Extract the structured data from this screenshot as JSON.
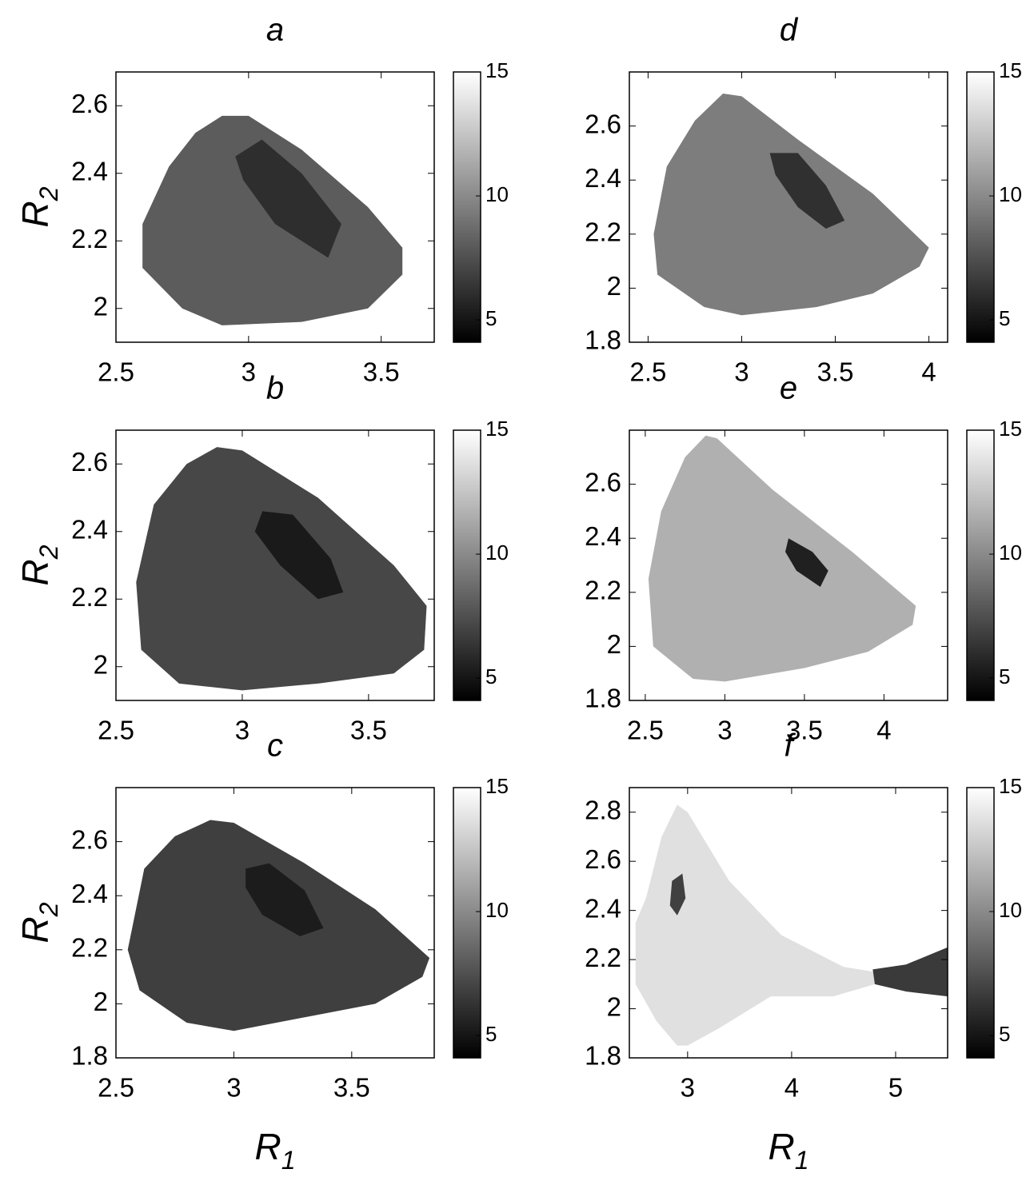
{
  "chart_data": [
    {
      "type": "heatmap",
      "title": "a",
      "xlim": [
        2.5,
        3.7
      ],
      "ylim": [
        1.9,
        2.7
      ],
      "xticks": [
        2.5,
        3,
        3.5
      ],
      "yticks": [
        2,
        2.2,
        2.4,
        2.6
      ],
      "ylabel": {
        "base": "R",
        "subscript": "2"
      },
      "colormap": "gray",
      "colorbar": {
        "clim": [
          4.1,
          15
        ],
        "ticks": [
          5,
          10,
          15
        ]
      },
      "regions": [
        {
          "x": [
            2.6,
            2.7,
            2.8,
            2.9,
            3.0,
            3.2,
            3.45,
            3.58,
            3.58,
            3.45,
            3.2,
            2.9,
            2.75,
            2.6
          ],
          "y": [
            2.25,
            2.42,
            2.52,
            2.57,
            2.57,
            2.47,
            2.3,
            2.18,
            2.1,
            2.0,
            1.96,
            1.95,
            2.0,
            2.12
          ],
          "color": "#5c5c5c"
        },
        {
          "x": [
            2.95,
            3.05,
            3.2,
            3.35,
            3.3,
            3.1,
            2.98
          ],
          "y": [
            2.45,
            2.5,
            2.4,
            2.25,
            2.15,
            2.25,
            2.38
          ],
          "color": "#2e2e2e"
        }
      ]
    },
    {
      "type": "heatmap",
      "title": "b",
      "xlim": [
        2.5,
        3.76
      ],
      "ylim": [
        1.9,
        2.7
      ],
      "xticks": [
        2.5,
        3,
        3.5
      ],
      "yticks": [
        2,
        2.2,
        2.4,
        2.6
      ],
      "ylabel": {
        "base": "R",
        "subscript": "2"
      },
      "colormap": "gray",
      "colorbar": {
        "clim": [
          4.1,
          15
        ],
        "ticks": [
          5,
          10,
          15
        ]
      },
      "regions": [
        {
          "x": [
            2.58,
            2.65,
            2.78,
            2.9,
            3.0,
            3.3,
            3.6,
            3.73,
            3.72,
            3.6,
            3.3,
            3.0,
            2.75,
            2.6
          ],
          "y": [
            2.25,
            2.48,
            2.6,
            2.65,
            2.64,
            2.5,
            2.3,
            2.18,
            2.05,
            1.98,
            1.95,
            1.93,
            1.95,
            2.05
          ],
          "color": "#474747"
        },
        {
          "x": [
            3.08,
            3.2,
            3.35,
            3.4,
            3.3,
            3.15,
            3.05
          ],
          "y": [
            2.46,
            2.45,
            2.32,
            2.22,
            2.2,
            2.3,
            2.4
          ],
          "color": "#1a1a1a"
        }
      ]
    },
    {
      "type": "heatmap",
      "title": "c",
      "xlim": [
        2.5,
        3.85
      ],
      "ylim": [
        1.8,
        2.8
      ],
      "xticks": [
        2.5,
        3,
        3.5
      ],
      "yticks": [
        1.8,
        2,
        2.2,
        2.4,
        2.6
      ],
      "ylabel": {
        "base": "R",
        "subscript": "2"
      },
      "xlabel": {
        "base": "R",
        "subscript": "1"
      },
      "colormap": "gray",
      "colorbar": {
        "clim": [
          4.1,
          15
        ],
        "ticks": [
          5,
          10,
          15
        ]
      },
      "regions": [
        {
          "x": [
            2.55,
            2.62,
            2.75,
            2.9,
            3.0,
            3.3,
            3.6,
            3.83,
            3.8,
            3.6,
            3.3,
            3.0,
            2.8,
            2.6
          ],
          "y": [
            2.2,
            2.5,
            2.62,
            2.68,
            2.67,
            2.52,
            2.35,
            2.17,
            2.1,
            2.0,
            1.95,
            1.9,
            1.93,
            2.05
          ],
          "color": "#3f3f3f"
        },
        {
          "x": [
            3.05,
            3.15,
            3.3,
            3.38,
            3.28,
            3.12,
            3.05
          ],
          "y": [
            2.5,
            2.52,
            2.42,
            2.28,
            2.25,
            2.33,
            2.43
          ],
          "color": "#1c1c1c"
        }
      ]
    },
    {
      "type": "heatmap",
      "title": "d",
      "xlim": [
        2.4,
        4.1
      ],
      "ylim": [
        1.8,
        2.8
      ],
      "xticks": [
        2.5,
        3,
        3.5,
        4
      ],
      "yticks": [
        1.8,
        2,
        2.2,
        2.4,
        2.6
      ],
      "colormap": "gray",
      "colorbar": {
        "clim": [
          4.1,
          15
        ],
        "ticks": [
          5,
          10,
          15
        ]
      },
      "regions": [
        {
          "x": [
            2.53,
            2.6,
            2.75,
            2.9,
            3.0,
            3.3,
            3.7,
            4.0,
            3.95,
            3.7,
            3.4,
            3.0,
            2.8,
            2.55
          ],
          "y": [
            2.2,
            2.45,
            2.62,
            2.72,
            2.71,
            2.55,
            2.35,
            2.15,
            2.08,
            1.98,
            1.93,
            1.9,
            1.93,
            2.05
          ],
          "color": "#7d7d7d"
        },
        {
          "x": [
            3.15,
            3.3,
            3.45,
            3.55,
            3.45,
            3.3,
            3.18
          ],
          "y": [
            2.5,
            2.5,
            2.38,
            2.25,
            2.22,
            2.3,
            2.42
          ],
          "color": "#303030"
        }
      ]
    },
    {
      "type": "heatmap",
      "title": "e",
      "xlim": [
        2.4,
        4.4
      ],
      "ylim": [
        1.8,
        2.8
      ],
      "xticks": [
        2.5,
        3,
        3.5,
        4
      ],
      "yticks": [
        1.8,
        2,
        2.2,
        2.4,
        2.6
      ],
      "colormap": "gray",
      "colorbar": {
        "clim": [
          4.1,
          15
        ],
        "ticks": [
          5,
          10,
          15
        ]
      },
      "regions": [
        {
          "x": [
            2.52,
            2.6,
            2.75,
            2.88,
            2.95,
            3.3,
            3.8,
            4.2,
            4.18,
            3.9,
            3.5,
            3.0,
            2.8,
            2.55
          ],
          "y": [
            2.25,
            2.5,
            2.7,
            2.78,
            2.77,
            2.58,
            2.35,
            2.15,
            2.08,
            1.98,
            1.92,
            1.87,
            1.88,
            2.0
          ],
          "color": "#b0b0b0"
        },
        {
          "x": [
            3.4,
            3.55,
            3.65,
            3.6,
            3.45,
            3.38
          ],
          "y": [
            2.4,
            2.35,
            2.28,
            2.22,
            2.28,
            2.35
          ],
          "color": "#202020"
        }
      ]
    },
    {
      "type": "heatmap",
      "title": "f",
      "xlim": [
        2.44,
        5.5
      ],
      "ylim": [
        1.8,
        2.9
      ],
      "xticks": [
        3,
        4,
        5
      ],
      "yticks": [
        1.8,
        2,
        2.2,
        2.4,
        2.6,
        2.8
      ],
      "xlabel": {
        "base": "R",
        "subscript": "1"
      },
      "colormap": "gray",
      "colorbar": {
        "clim": [
          4.1,
          15
        ],
        "ticks": [
          5,
          10,
          15
        ]
      },
      "regions": [
        {
          "x": [
            2.5,
            2.6,
            2.75,
            2.9,
            3.0,
            3.4,
            3.9,
            4.5,
            4.8,
            4.8,
            4.4,
            3.8,
            3.3,
            3.0,
            2.9,
            2.7,
            2.5
          ],
          "y": [
            2.35,
            2.45,
            2.7,
            2.83,
            2.8,
            2.52,
            2.3,
            2.17,
            2.15,
            2.1,
            2.05,
            2.05,
            1.92,
            1.85,
            1.85,
            1.95,
            2.1
          ],
          "color": "#e0e0e0"
        },
        {
          "x": [
            4.78,
            5.1,
            5.5,
            5.5,
            5.1,
            4.8
          ],
          "y": [
            2.16,
            2.18,
            2.25,
            2.05,
            2.07,
            2.1
          ],
          "color": "#3a3a3a"
        },
        {
          "x": [
            2.85,
            2.95,
            2.98,
            2.9,
            2.83
          ],
          "y": [
            2.52,
            2.55,
            2.45,
            2.38,
            2.42
          ],
          "color": "#404040"
        }
      ]
    }
  ]
}
